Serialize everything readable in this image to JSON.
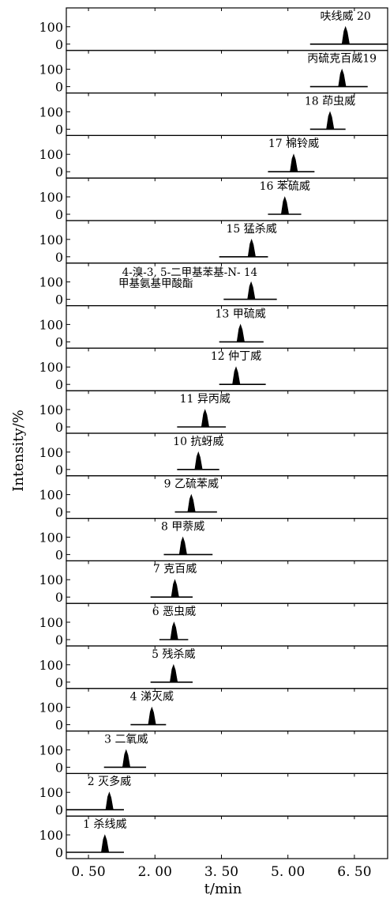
{
  "chart_data": {
    "type": "line",
    "title": "",
    "xlabel": "t/min",
    "ylabel": "Intensity/%",
    "xlim": [
      0.0,
      7.25
    ],
    "ylim": [
      0,
      100
    ],
    "xticks": [
      "0. 50",
      "2. 00",
      "3. 50",
      "5. 00",
      "6. 50"
    ],
    "xtick_values": [
      0.5,
      2.0,
      3.5,
      5.0,
      6.5
    ],
    "yticks": [
      "100",
      "0"
    ],
    "yticks_values": [
      100,
      0
    ],
    "panels": [
      {
        "label": "呋线威 20",
        "rt": 6.3,
        "baseline": [
          5.5,
          7.25
        ]
      },
      {
        "label": "丙硫克百威19",
        "rt": 6.22,
        "baseline": [
          5.5,
          6.8
        ]
      },
      {
        "label": "18 茚虫威",
        "rt": 5.95,
        "baseline": [
          5.5,
          6.3
        ]
      },
      {
        "label": "17 棉铃威",
        "rt": 5.13,
        "baseline": [
          4.55,
          5.6
        ]
      },
      {
        "label": "16 苯硫威",
        "rt": 4.93,
        "baseline": [
          4.55,
          5.3
        ]
      },
      {
        "label": "15 猛杀威",
        "rt": 4.18,
        "baseline": [
          3.45,
          4.55
        ]
      },
      {
        "label": [
          "4-溴-3, 5-二甲基苯基-N- 14",
          "甲基氨基甲酸酯"
        ],
        "rt": 4.17,
        "baseline": [
          3.55,
          4.75
        ]
      },
      {
        "label": "13 甲硫威",
        "rt": 3.93,
        "baseline": [
          3.45,
          4.45
        ]
      },
      {
        "label": "12 仲丁威",
        "rt": 3.83,
        "baseline": [
          3.45,
          4.5
        ]
      },
      {
        "label": "11 异丙威",
        "rt": 3.13,
        "baseline": [
          2.5,
          3.6
        ]
      },
      {
        "label": "10 抗蚜威",
        "rt": 2.98,
        "baseline": [
          2.5,
          3.45
        ]
      },
      {
        "label": "9 乙硫苯威",
        "rt": 2.82,
        "baseline": [
          2.45,
          3.4
        ]
      },
      {
        "label": "8 甲萘威",
        "rt": 2.63,
        "baseline": [
          2.2,
          3.3
        ]
      },
      {
        "label": "7 克百威",
        "rt": 2.45,
        "baseline": [
          1.9,
          2.85
        ]
      },
      {
        "label": "6 恶虫威",
        "rt": 2.43,
        "baseline": [
          2.1,
          2.75
        ]
      },
      {
        "label": "5 残杀威",
        "rt": 2.42,
        "baseline": [
          1.9,
          2.85
        ]
      },
      {
        "label": "4 涕灭威",
        "rt": 1.93,
        "baseline": [
          1.45,
          2.25
        ]
      },
      {
        "label": "3 二氧威",
        "rt": 1.35,
        "baseline": [
          0.85,
          1.8
        ]
      },
      {
        "label": "2 灭多威",
        "rt": 0.97,
        "baseline": [
          0.0,
          1.3
        ]
      },
      {
        "label": "1 杀线威",
        "rt": 0.87,
        "baseline": [
          0.0,
          1.3
        ]
      }
    ]
  }
}
